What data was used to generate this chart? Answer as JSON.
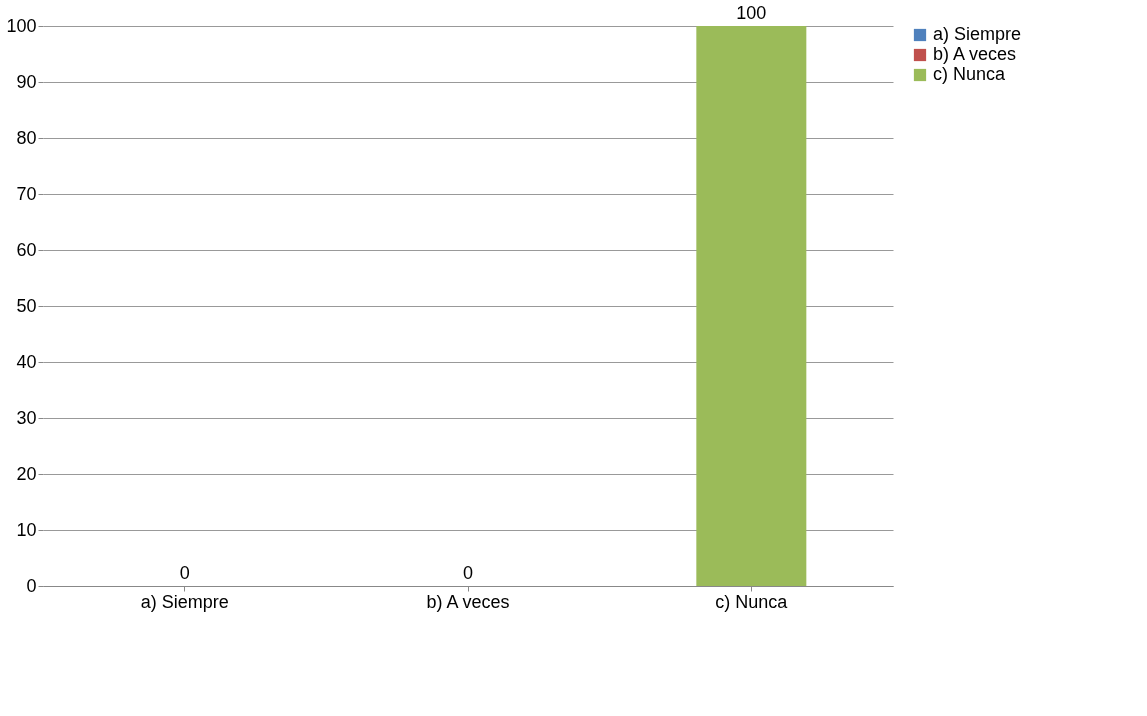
{
  "chart_data": {
    "type": "bar",
    "categories": [
      "a) Siempre",
      "b) A veces",
      "c) Nunca"
    ],
    "series": [
      {
        "name": "a) Siempre",
        "color": "#4f81bd",
        "values": [
          0,
          null,
          null
        ]
      },
      {
        "name": "b) A veces",
        "color": "#c0504d",
        "values": [
          null,
          0,
          null
        ]
      },
      {
        "name": "c) Nunca",
        "color": "#9bbb59",
        "values": [
          null,
          null,
          100
        ]
      }
    ],
    "ylim": [
      0,
      100
    ],
    "yticks": [
      0,
      10,
      20,
      30,
      40,
      50,
      60,
      70,
      80,
      90,
      100
    ],
    "grid": "y",
    "legend": "right",
    "data_labels": true
  }
}
